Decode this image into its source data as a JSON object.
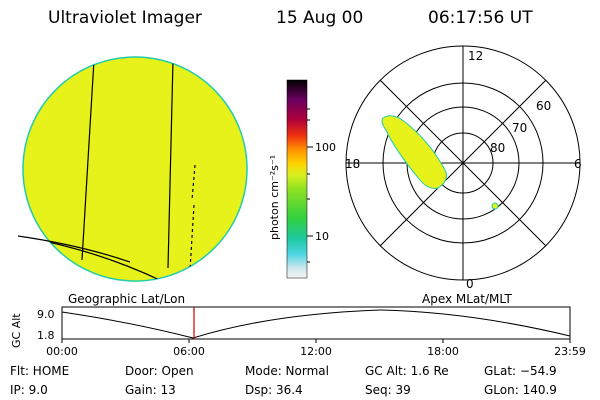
{
  "header": {
    "instrument": "Ultraviolet Imager",
    "date": "15 Aug 00",
    "time": "06:17:56 UT"
  },
  "colorbar": {
    "unit_label": "photon cm⁻²s⁻¹",
    "ticks": [
      "100",
      "10"
    ]
  },
  "polar_plot": {
    "mlt_labels": {
      "top": "12",
      "left": "18",
      "right": "6",
      "bottom": "0"
    },
    "lat_labels": [
      "60",
      "70",
      "80"
    ]
  },
  "timeline": {
    "left_title": "Geographic Lat/Lon",
    "right_title": "Apex MLat/MLT",
    "axis_label": "GC Alt",
    "y_max": "9.0",
    "y_min": "1.8",
    "x_ticks": [
      "00:00",
      "06:00",
      "12:00",
      "18:00",
      "23:59"
    ],
    "marker_time": "06:17:56"
  },
  "status": {
    "flt": "Flt: HOME",
    "ip": "IP:  9.0",
    "door": "Door: Open",
    "gain": "Gain: 13",
    "mode": "Mode: Normal",
    "dsp": "Dsp:   36.4",
    "gc_alt": "GC Alt: 1.6 Re",
    "seq": "Seq: 39",
    "glat": "GLat: −54.9",
    "glon": "GLon: 140.9"
  },
  "colors": {
    "disk_fill": "#e6f21a",
    "disk_edge": "#22ccaa",
    "marker": "#cc0000"
  }
}
